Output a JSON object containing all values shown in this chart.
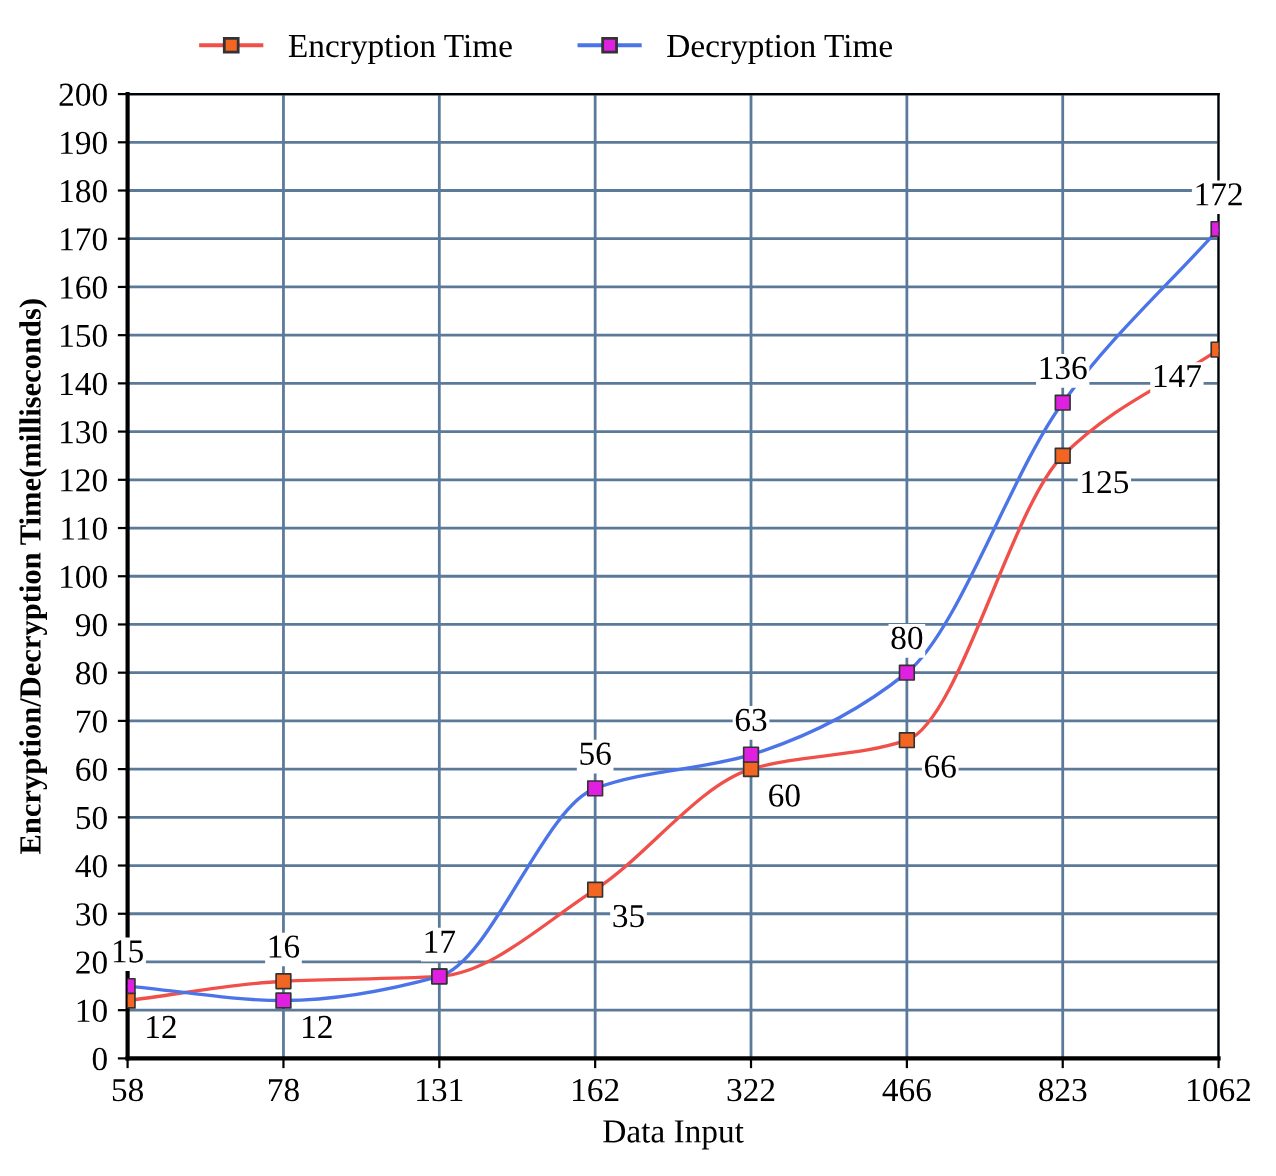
{
  "chart_data": {
    "type": "line",
    "xlabel": "Data Input",
    "ylabel": "Encryption/Decryption Time(milliseconds)",
    "categories": [
      "58",
      "78",
      "131",
      "162",
      "322",
      "466",
      "823",
      "1062"
    ],
    "series": [
      {
        "name": "Encryption Time",
        "color": "#f0504a",
        "values": [
          12,
          16,
          17,
          35,
          60,
          66,
          125,
          147
        ],
        "value_labels": [
          "12",
          "16",
          "17",
          "35",
          "60",
          "66",
          "125",
          "147"
        ]
      },
      {
        "name": "Decryption Time",
        "color": "#4a74e8",
        "values": [
          15,
          12,
          17,
          56,
          63,
          80,
          136,
          172
        ],
        "value_labels": [
          "15",
          "12",
          null,
          "56",
          "63",
          "80",
          "136",
          "172"
        ]
      }
    ],
    "ylim": [
      0,
      200
    ],
    "yticks": [
      0,
      10,
      20,
      30,
      40,
      50,
      60,
      70,
      80,
      90,
      100,
      110,
      120,
      130,
      140,
      150,
      160,
      170,
      180,
      190,
      200
    ],
    "grid": true,
    "legend": "top left",
    "marker": "square",
    "line_style": "solid"
  }
}
